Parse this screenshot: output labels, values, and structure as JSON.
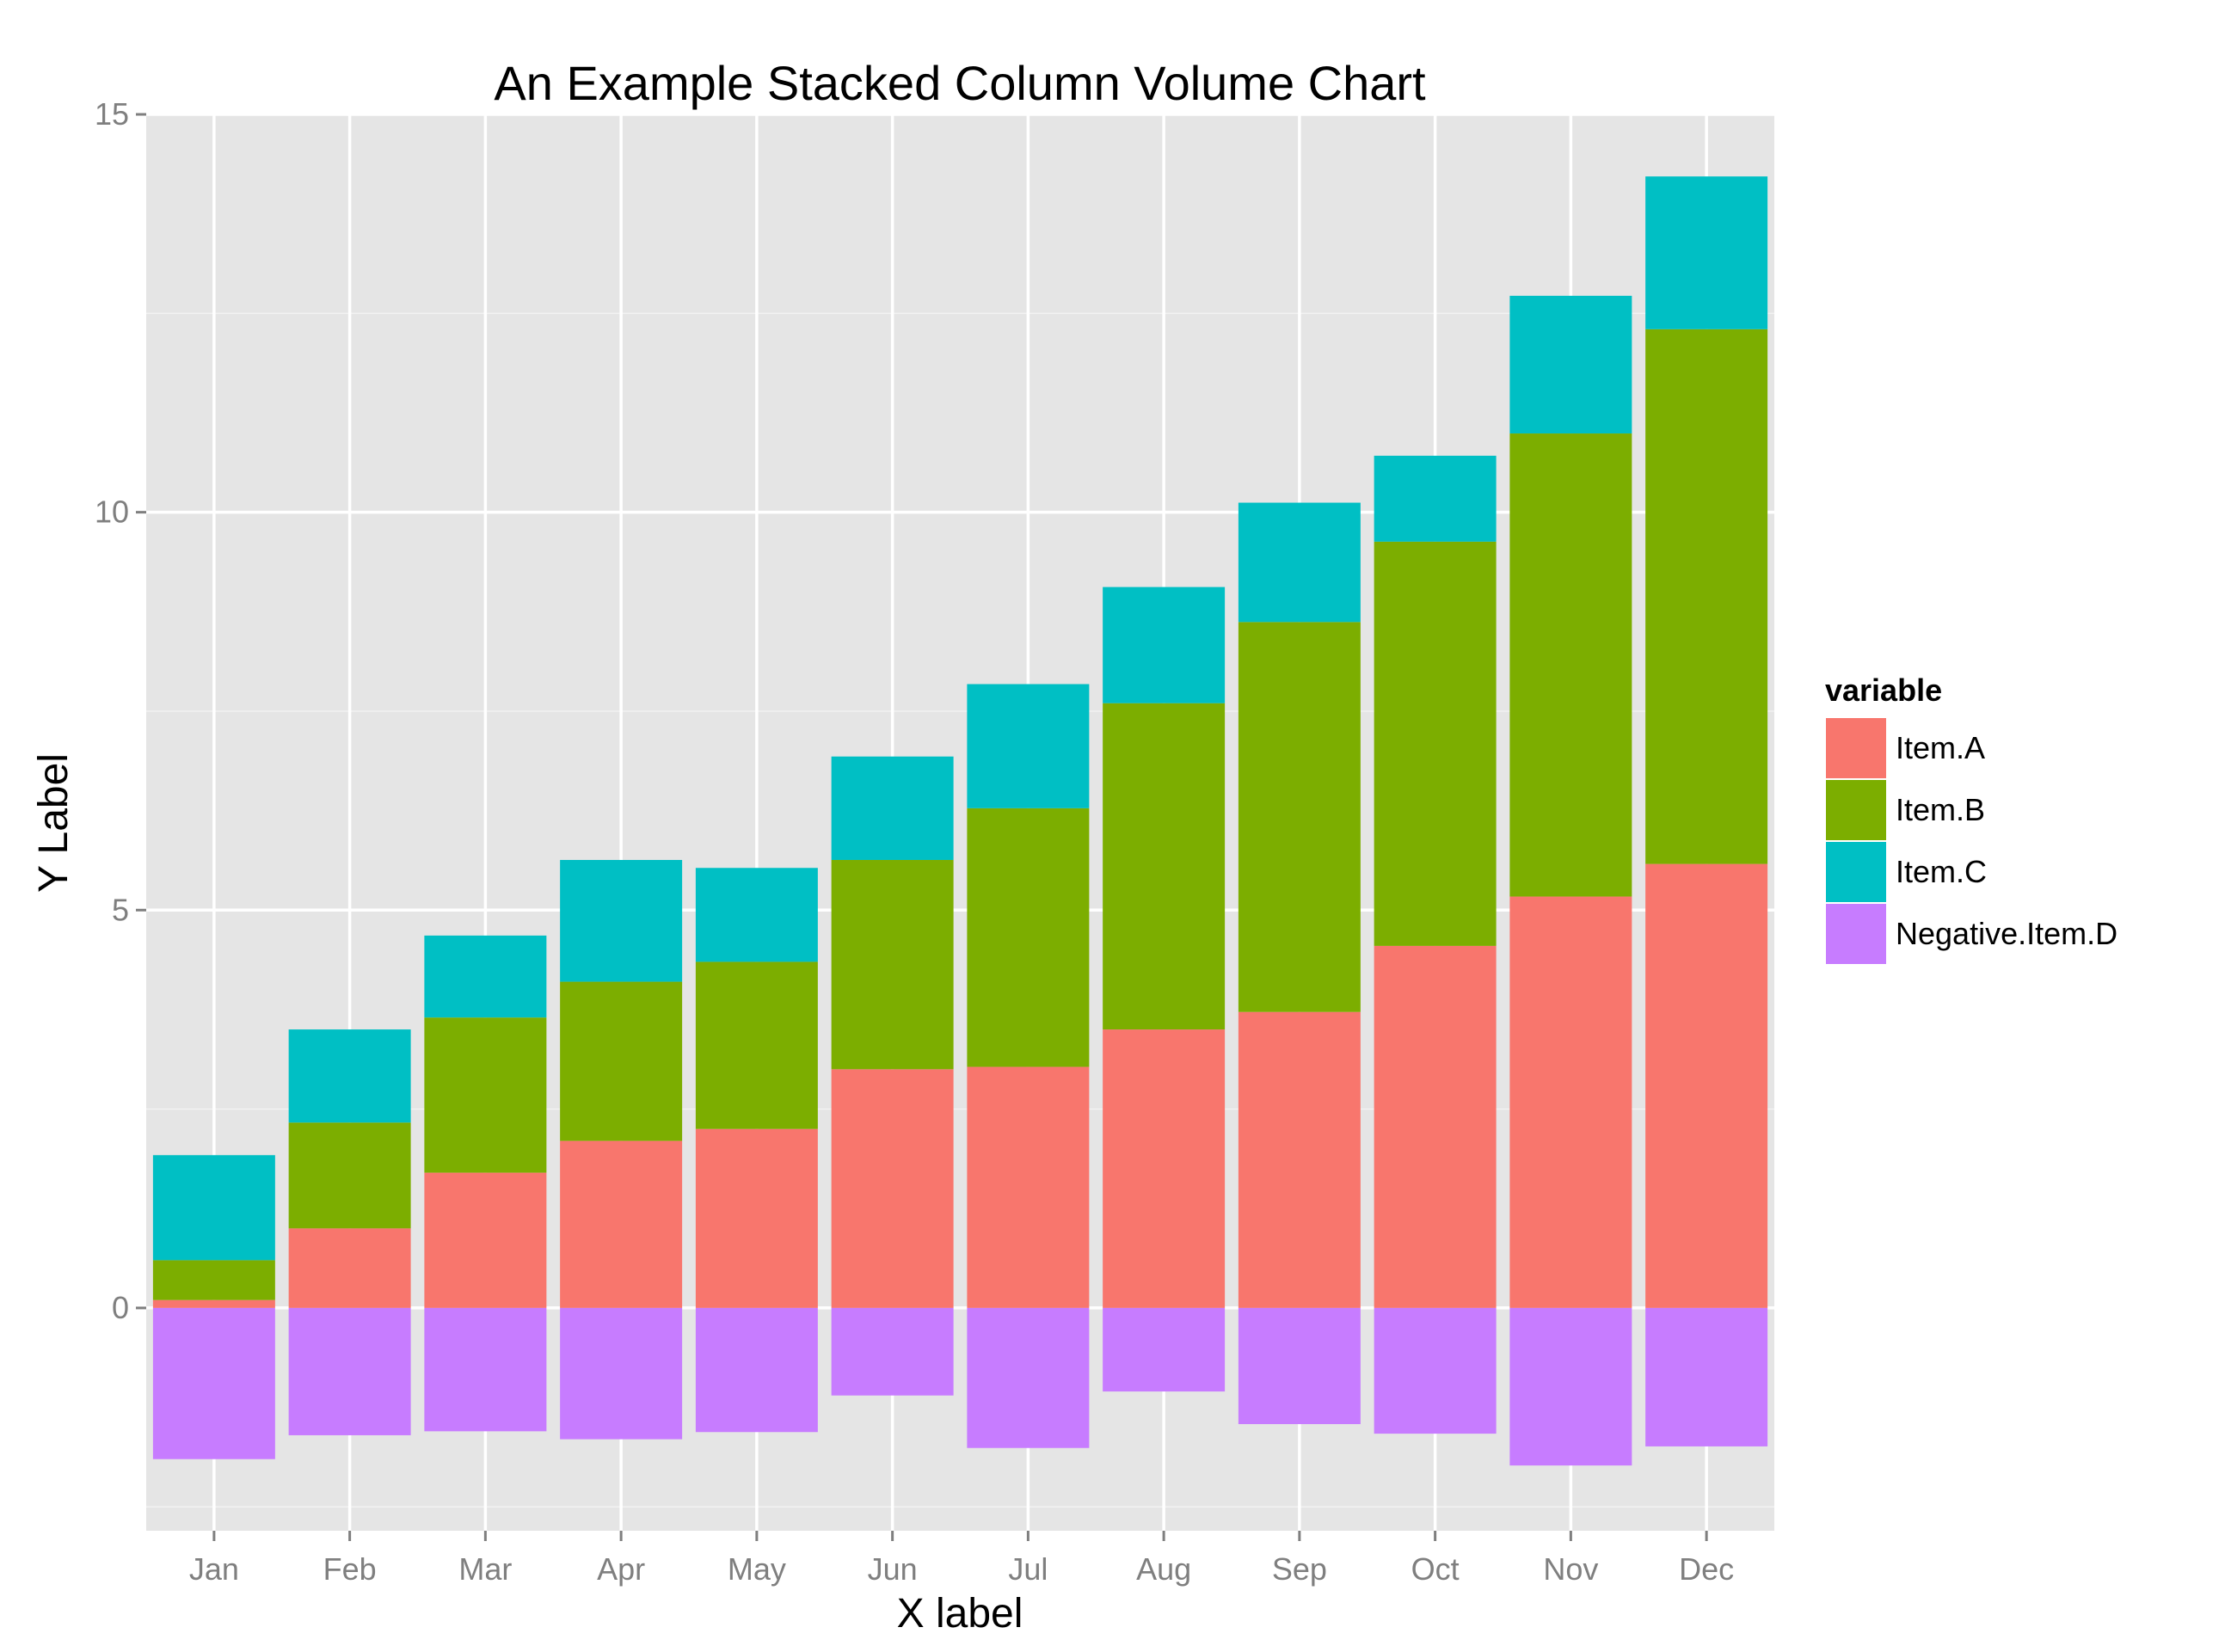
{
  "chart_data": {
    "type": "bar",
    "stacked": true,
    "title": "An Example Stacked Column Volume Chart",
    "xlabel": "X label",
    "ylabel": "Y Label",
    "categories": [
      "Jan",
      "Feb",
      "Mar",
      "Apr",
      "May",
      "Jun",
      "Jul",
      "Aug",
      "Sep",
      "Oct",
      "Nov",
      "Dec"
    ],
    "ylim": [
      -2.8,
      15
    ],
    "yticks": [
      0,
      5,
      10,
      15
    ],
    "grid": true,
    "legend": {
      "title": "variable",
      "position": "right"
    },
    "series": [
      {
        "name": "Item.A",
        "color": "#F8766D",
        "values": [
          0.1,
          1.0,
          1.7,
          2.1,
          2.25,
          3.0,
          3.03,
          3.5,
          3.72,
          4.55,
          5.17,
          5.58
        ]
      },
      {
        "name": "Item.B",
        "color": "#7CAE00",
        "values": [
          0.5,
          1.33,
          1.95,
          2.0,
          2.1,
          2.63,
          3.25,
          4.1,
          4.9,
          5.08,
          5.82,
          6.72
        ]
      },
      {
        "name": "Item.C",
        "color": "#00BFC4",
        "values": [
          1.32,
          1.17,
          1.03,
          1.53,
          1.18,
          1.3,
          1.56,
          1.46,
          1.5,
          1.08,
          1.73,
          1.92
        ]
      },
      {
        "name": "Negative.Item.D",
        "color": "#C77CFF",
        "values": [
          -1.9,
          -1.6,
          -1.55,
          -1.65,
          -1.56,
          -1.1,
          -1.76,
          -1.05,
          -1.46,
          -1.58,
          -1.98,
          -1.74
        ]
      }
    ]
  }
}
